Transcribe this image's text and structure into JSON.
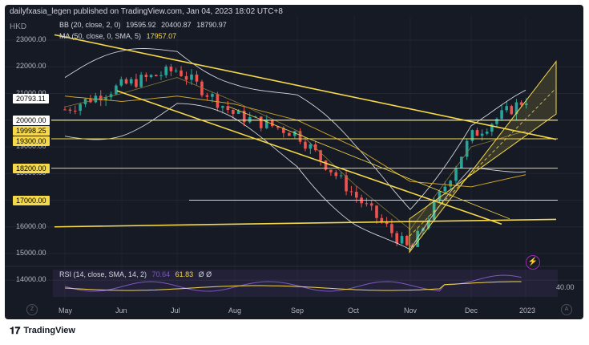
{
  "header": {
    "publisher": "dailyfxasia_legen published on TradingView.com, Jan 04, 2023 18:02 UTC+8",
    "currency": "HKD"
  },
  "indicators": {
    "bb": {
      "label": "BB (20, close, 2, 0)",
      "values": [
        "19595.92",
        "20400.87",
        "18790.97"
      ]
    },
    "ma": {
      "label": "MA (50, close, 0, SMA, 5)",
      "value": "17957.07"
    },
    "rsi": {
      "label": "RSI (14, close, SMA, 14, 2)",
      "value1": "70.64",
      "value2": "61.83",
      "extra": "Ø Ø"
    }
  },
  "price_labels": [
    {
      "text": "20793.11",
      "price": 20793.11,
      "style": "cur"
    },
    {
      "text": "20000.00",
      "price": 20000,
      "style": "white"
    },
    {
      "text": "19998.25",
      "price": 19590,
      "style": "yellow"
    },
    {
      "text": "19300.00",
      "price": 19200,
      "style": "yellow"
    },
    {
      "text": "18200.00",
      "price": 18200,
      "style": "yellow"
    },
    {
      "text": "17000.00",
      "price": 16970,
      "style": "yellow"
    }
  ],
  "y_ticks": [
    "23000.00",
    "22000.00",
    "21000.00",
    "20000.00",
    "19000.00",
    "18000.00",
    "17000.00",
    "16000.00",
    "15000.00",
    "14000.00"
  ],
  "rsi_tick": "40.00",
  "x_ticks": [
    "May",
    "Jun",
    "Jul",
    "Aug",
    "Sep",
    "Oct",
    "Nov",
    "Dec",
    "2023"
  ],
  "footer": {
    "brand": "TradingView"
  },
  "chart_data": {
    "type": "line",
    "ylabel": "HKD",
    "ylim": [
      13000,
      23500
    ],
    "x": [
      "May",
      "Jun",
      "Jul",
      "Aug",
      "Sep",
      "Oct",
      "Nov",
      "Dec",
      "2023"
    ],
    "series": [
      {
        "name": "Price",
        "values": [
          20400,
          21300,
          21900,
          20200,
          19500,
          17200,
          15100,
          19400,
          20793
        ]
      },
      {
        "name": "BB (20, close, 2, 0)",
        "values": [
          20500,
          21000,
          21600,
          20700,
          19600,
          17600,
          15900,
          19000,
          19596
        ]
      },
      {
        "name": "MA (50, close, 0, SMA, 5)",
        "values": [
          20900,
          20700,
          20900,
          20600,
          20000,
          19000,
          17700,
          17500,
          17957
        ]
      }
    ],
    "horizontal_levels": [
      20000,
      19998.25,
      19300,
      18200,
      17000
    ],
    "last_price": 20793.11
  },
  "colors": {
    "background": "#161a25",
    "up": "#26a69a",
    "down": "#ef5350",
    "trendline": "#f5d94a",
    "band": "#d1d4dc",
    "rsi": "#7e57c2"
  }
}
